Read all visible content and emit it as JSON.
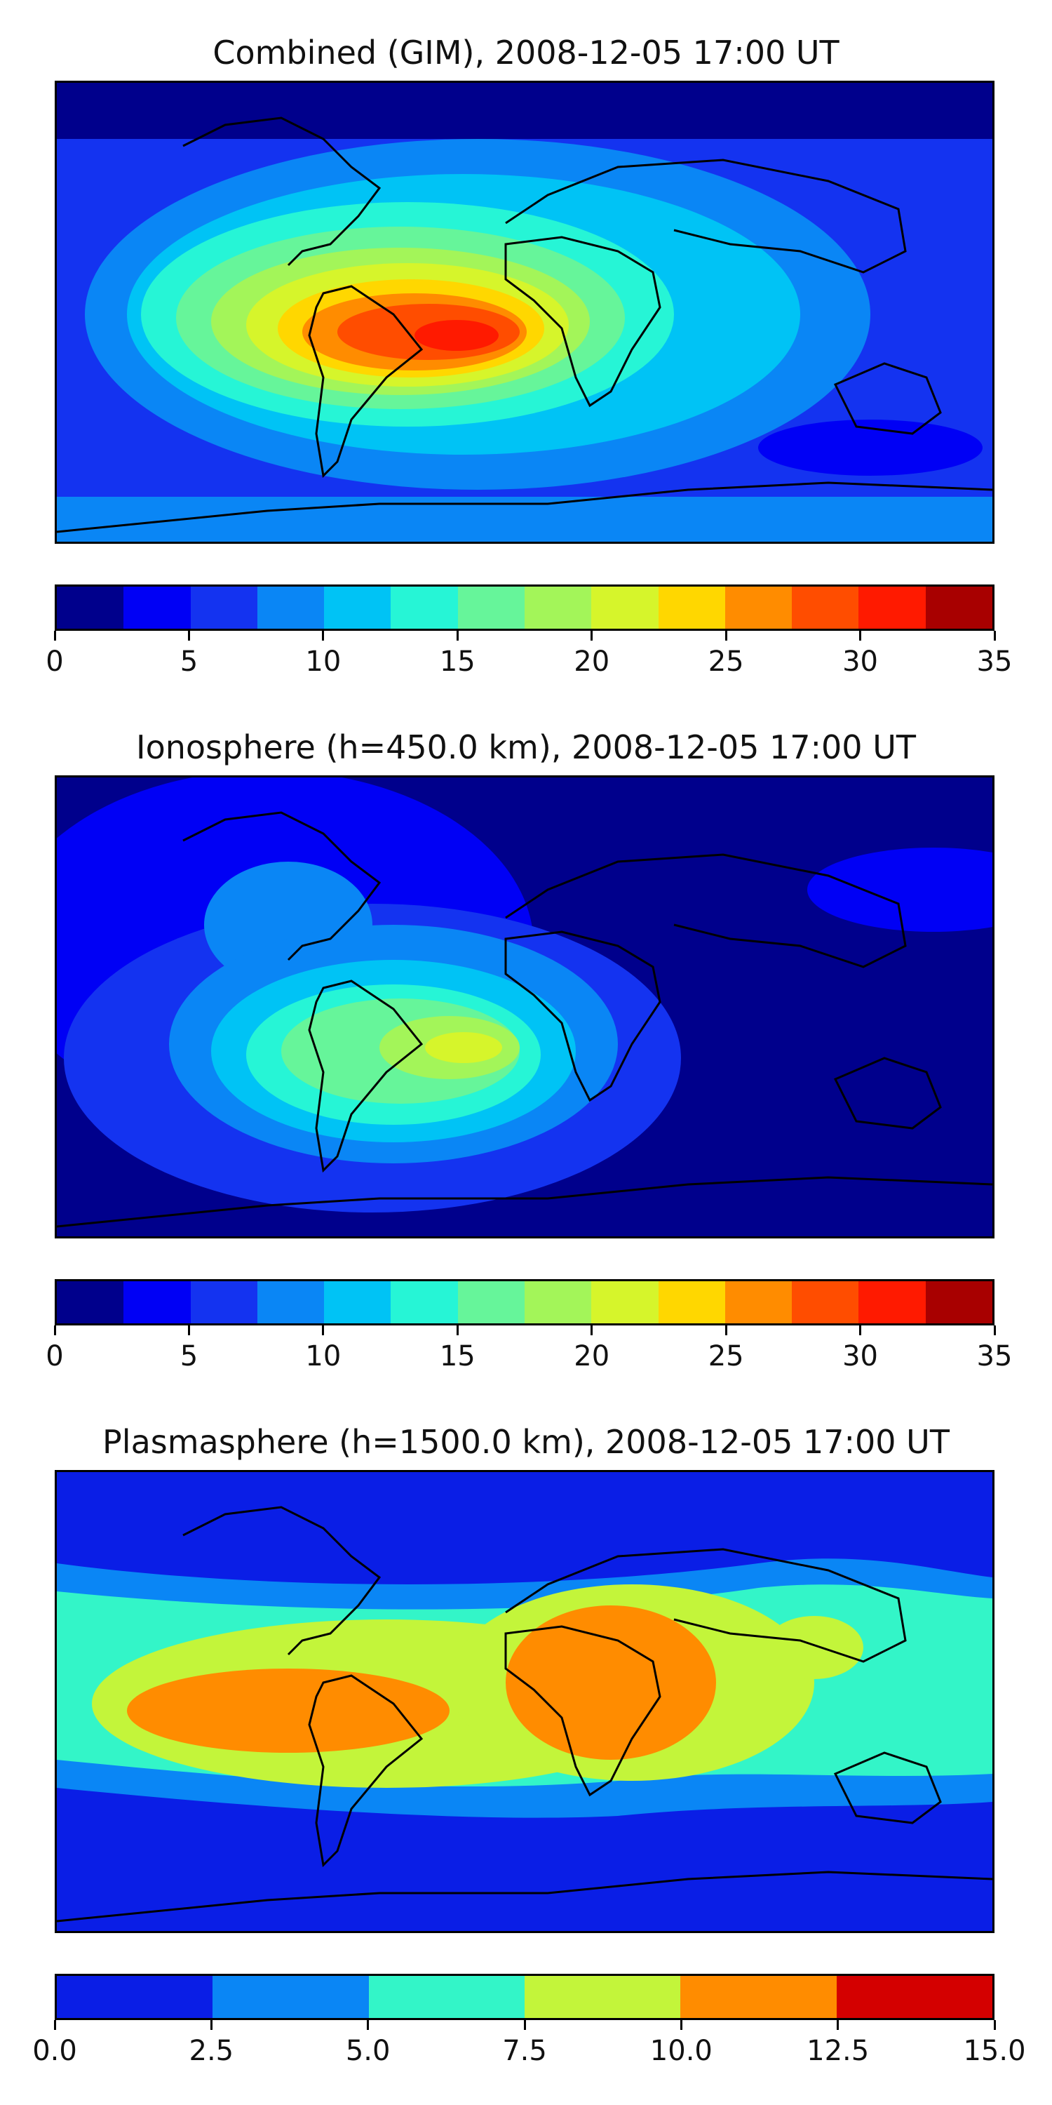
{
  "panels": [
    {
      "title": "Combined (GIM), 2008-12-05 17:00 UT",
      "colorbar": {
        "colors": [
          "#00008c",
          "#0000f5",
          "#1433f0",
          "#0a86f5",
          "#00c3f5",
          "#26f5d6",
          "#66f59a",
          "#a3f559",
          "#d6f52b",
          "#ffd700",
          "#ff8c00",
          "#ff4d00",
          "#ff1a00",
          "#a80000"
        ],
        "ticks": [
          "0",
          "5",
          "10",
          "15",
          "20",
          "25",
          "30",
          "35"
        ],
        "range": [
          0,
          35
        ]
      }
    },
    {
      "title": "Ionosphere  (h=450.0 km), 2008-12-05 17:00 UT",
      "colorbar": {
        "colors": [
          "#00008c",
          "#0000f5",
          "#1433f0",
          "#0a86f5",
          "#00c3f5",
          "#26f5d6",
          "#66f59a",
          "#a3f559",
          "#d6f52b",
          "#ffd700",
          "#ff8c00",
          "#ff4d00",
          "#ff1a00",
          "#a80000"
        ],
        "ticks": [
          "0",
          "5",
          "10",
          "15",
          "20",
          "25",
          "30",
          "35"
        ],
        "range": [
          0,
          35
        ]
      }
    },
    {
      "title": "Plasmasphere (h=1500.0 km), 2008-12-05 17:00 UT",
      "colorbar": {
        "colors": [
          "#0a1ee6",
          "#0a86f5",
          "#33f5c8",
          "#c3f53a",
          "#ff8c00",
          "#d40000"
        ],
        "ticks": [
          "0.0",
          "2.5",
          "5.0",
          "7.5",
          "10.0",
          "12.5",
          "15.0"
        ],
        "range": [
          0,
          15
        ]
      }
    }
  ]
}
